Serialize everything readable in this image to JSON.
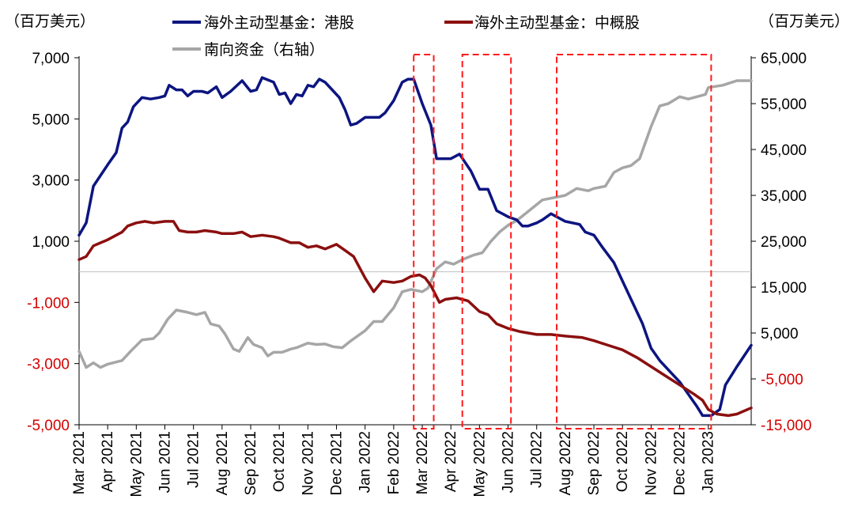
{
  "chart_data": {
    "type": "line",
    "left_unit": "（百万美元）",
    "right_unit": "（百万美元）",
    "left_axis": {
      "ylim": [
        -5000,
        7000
      ],
      "ticks": [
        7000,
        5000,
        3000,
        1000,
        -1000,
        -3000,
        -5000
      ],
      "tick_labels": [
        "7,000",
        "5,000",
        "3,000",
        "1,000",
        "-1,000",
        "-3,000",
        "-5,000"
      ]
    },
    "right_axis": {
      "ylim": [
        -15000,
        65000
      ],
      "ticks": [
        65000,
        55000,
        45000,
        35000,
        25000,
        15000,
        5000,
        -5000,
        -15000
      ],
      "tick_labels": [
        "65,000",
        "55,000",
        "45,000",
        "35,000",
        "25,000",
        "15,000",
        "5,000",
        "-5,000",
        "-15,000"
      ]
    },
    "x_axis": {
      "start": 0,
      "end": 23.5,
      "tick_labels": [
        "Mar 2021",
        "Apr 2021",
        "May 2021",
        "Jun 2021",
        "Jul 2021",
        "Aug 2021",
        "Sep 2021",
        "Oct 2021",
        "Nov 2021",
        "Dec 2021",
        "Jan 2022",
        "Feb 2022",
        "Mar 2022",
        "Apr 2022",
        "May 2022",
        "Jun 2022",
        "Jul 2022",
        "Aug 2022",
        "Sep 2022",
        "Oct 2022",
        "Nov 2022",
        "Dec 2022",
        "Jan 2023"
      ],
      "tick_positions": [
        0,
        1,
        2,
        3,
        4,
        5,
        6,
        7,
        8,
        9,
        10,
        11,
        12,
        13,
        14,
        15,
        16,
        17,
        18,
        19,
        20,
        21,
        22
      ]
    },
    "series": [
      {
        "name": "海外主动型基金：港股",
        "axis": "left",
        "color": "#0c1580",
        "points": [
          [
            0,
            1200
          ],
          [
            0.25,
            1600
          ],
          [
            0.5,
            2800
          ],
          [
            1,
            3500
          ],
          [
            1.3,
            3900
          ],
          [
            1.5,
            4700
          ],
          [
            1.7,
            4900
          ],
          [
            1.9,
            5400
          ],
          [
            2.2,
            5700
          ],
          [
            2.5,
            5650
          ],
          [
            2.8,
            5700
          ],
          [
            3,
            5750
          ],
          [
            3.15,
            6100
          ],
          [
            3.4,
            5950
          ],
          [
            3.6,
            5950
          ],
          [
            3.8,
            5750
          ],
          [
            4,
            5900
          ],
          [
            4.3,
            5900
          ],
          [
            4.5,
            5850
          ],
          [
            4.8,
            6050
          ],
          [
            5,
            5700
          ],
          [
            5.3,
            5900
          ],
          [
            5.7,
            6250
          ],
          [
            6,
            5900
          ],
          [
            6.2,
            5950
          ],
          [
            6.4,
            6350
          ],
          [
            6.8,
            6200
          ],
          [
            7,
            5800
          ],
          [
            7.2,
            5850
          ],
          [
            7.4,
            5500
          ],
          [
            7.6,
            5800
          ],
          [
            7.8,
            5750
          ],
          [
            8,
            6100
          ],
          [
            8.2,
            6050
          ],
          [
            8.4,
            6300
          ],
          [
            8.6,
            6200
          ],
          [
            8.9,
            5900
          ],
          [
            9.1,
            5700
          ],
          [
            9.3,
            5300
          ],
          [
            9.5,
            4800
          ],
          [
            9.7,
            4850
          ],
          [
            10,
            5050
          ],
          [
            10.3,
            5050
          ],
          [
            10.5,
            5050
          ],
          [
            10.7,
            5200
          ],
          [
            11,
            5600
          ],
          [
            11.3,
            6200
          ],
          [
            11.5,
            6300
          ],
          [
            11.7,
            6300
          ],
          [
            12,
            5500
          ],
          [
            12.3,
            4800
          ],
          [
            12.5,
            3700
          ],
          [
            12.8,
            3700
          ],
          [
            13,
            3700
          ],
          [
            13.3,
            3850
          ],
          [
            13.7,
            3300
          ],
          [
            14,
            2700
          ],
          [
            14.3,
            2700
          ],
          [
            14.6,
            2000
          ],
          [
            15,
            1800
          ],
          [
            15.3,
            1700
          ],
          [
            15.5,
            1500
          ],
          [
            15.7,
            1500
          ],
          [
            16,
            1600
          ],
          [
            16.2,
            1700
          ],
          [
            16.5,
            1900
          ],
          [
            17,
            1650
          ],
          [
            17.5,
            1550
          ],
          [
            17.7,
            1300
          ],
          [
            18,
            1200
          ],
          [
            18.3,
            800
          ],
          [
            18.7,
            300
          ],
          [
            19,
            -300
          ],
          [
            19.3,
            -900
          ],
          [
            19.7,
            -1700
          ],
          [
            20,
            -2500
          ],
          [
            20.3,
            -2900
          ],
          [
            20.6,
            -3200
          ],
          [
            21,
            -3600
          ],
          [
            21.3,
            -4000
          ],
          [
            21.6,
            -4400
          ],
          [
            21.8,
            -4700
          ],
          [
            22.1,
            -4700
          ],
          [
            22.4,
            -4500
          ],
          [
            22.6,
            -3700
          ],
          [
            23,
            -3100
          ],
          [
            23.5,
            -2400
          ]
        ]
      },
      {
        "name": "海外主动型基金：中概股",
        "axis": "left",
        "color": "#8b0f0f",
        "points": [
          [
            0,
            400
          ],
          [
            0.25,
            500
          ],
          [
            0.5,
            850
          ],
          [
            1,
            1050
          ],
          [
            1.3,
            1200
          ],
          [
            1.5,
            1300
          ],
          [
            1.7,
            1500
          ],
          [
            2,
            1600
          ],
          [
            2.3,
            1650
          ],
          [
            2.6,
            1600
          ],
          [
            3,
            1650
          ],
          [
            3.3,
            1650
          ],
          [
            3.5,
            1350
          ],
          [
            3.8,
            1300
          ],
          [
            4.1,
            1300
          ],
          [
            4.4,
            1350
          ],
          [
            4.8,
            1300
          ],
          [
            5,
            1250
          ],
          [
            5.4,
            1250
          ],
          [
            5.7,
            1300
          ],
          [
            6,
            1150
          ],
          [
            6.4,
            1200
          ],
          [
            6.8,
            1150
          ],
          [
            7,
            1100
          ],
          [
            7.4,
            950
          ],
          [
            7.7,
            950
          ],
          [
            8,
            800
          ],
          [
            8.3,
            850
          ],
          [
            8.6,
            750
          ],
          [
            9,
            900
          ],
          [
            9.3,
            700
          ],
          [
            9.6,
            500
          ],
          [
            10,
            -200
          ],
          [
            10.3,
            -650
          ],
          [
            10.6,
            -300
          ],
          [
            11,
            -350
          ],
          [
            11.3,
            -300
          ],
          [
            11.6,
            -150
          ],
          [
            11.9,
            -100
          ],
          [
            12.1,
            -200
          ],
          [
            12.3,
            -450
          ],
          [
            12.6,
            -1000
          ],
          [
            12.8,
            -900
          ],
          [
            13.2,
            -850
          ],
          [
            13.6,
            -950
          ],
          [
            14,
            -1300
          ],
          [
            14.3,
            -1400
          ],
          [
            14.6,
            -1700
          ],
          [
            15,
            -1850
          ],
          [
            15.4,
            -1950
          ],
          [
            16,
            -2050
          ],
          [
            16.5,
            -2050
          ],
          [
            17,
            -2100
          ],
          [
            17.6,
            -2150
          ],
          [
            18,
            -2250
          ],
          [
            18.5,
            -2400
          ],
          [
            19,
            -2550
          ],
          [
            19.5,
            -2800
          ],
          [
            20,
            -3100
          ],
          [
            20.5,
            -3400
          ],
          [
            21,
            -3700
          ],
          [
            21.5,
            -4000
          ],
          [
            21.8,
            -4200
          ],
          [
            22,
            -4500
          ],
          [
            22.3,
            -4650
          ],
          [
            22.7,
            -4700
          ],
          [
            23,
            -4650
          ],
          [
            23.5,
            -4450
          ]
        ]
      },
      {
        "name": "南向资金（右轴）",
        "axis": "right",
        "color": "#a6a6a6",
        "points": [
          [
            0,
            1000
          ],
          [
            0.25,
            -2500
          ],
          [
            0.5,
            -1500
          ],
          [
            0.75,
            -2500
          ],
          [
            1,
            -1800
          ],
          [
            1.5,
            -1000
          ],
          [
            1.8,
            1000
          ],
          [
            2.2,
            3500
          ],
          [
            2.6,
            3800
          ],
          [
            2.8,
            5000
          ],
          [
            3.1,
            8000
          ],
          [
            3.4,
            10000
          ],
          [
            3.8,
            9500
          ],
          [
            4.1,
            9000
          ],
          [
            4.4,
            9500
          ],
          [
            4.6,
            7000
          ],
          [
            4.9,
            6500
          ],
          [
            5.1,
            4800
          ],
          [
            5.4,
            1500
          ],
          [
            5.6,
            1000
          ],
          [
            5.9,
            4000
          ],
          [
            6.1,
            2500
          ],
          [
            6.4,
            1800
          ],
          [
            6.6,
            0
          ],
          [
            6.8,
            800
          ],
          [
            7.1,
            800
          ],
          [
            7.4,
            1500
          ],
          [
            7.6,
            1800
          ],
          [
            8,
            2800
          ],
          [
            8.3,
            2500
          ],
          [
            8.6,
            2600
          ],
          [
            8.9,
            2000
          ],
          [
            9.2,
            1800
          ],
          [
            9.5,
            3300
          ],
          [
            10,
            5500
          ],
          [
            10.3,
            7500
          ],
          [
            10.6,
            7500
          ],
          [
            11,
            10500
          ],
          [
            11.3,
            14000
          ],
          [
            11.6,
            14500
          ],
          [
            12,
            14000
          ],
          [
            12.2,
            14800
          ],
          [
            12.5,
            19000
          ],
          [
            12.8,
            20500
          ],
          [
            13.1,
            20000
          ],
          [
            13.4,
            21000
          ],
          [
            13.8,
            22000
          ],
          [
            14.1,
            22500
          ],
          [
            14.4,
            25000
          ],
          [
            14.7,
            27000
          ],
          [
            15,
            28500
          ],
          [
            15.3,
            29500
          ],
          [
            15.6,
            31000
          ],
          [
            15.9,
            32500
          ],
          [
            16.2,
            34000
          ],
          [
            16.6,
            34500
          ],
          [
            17,
            35000
          ],
          [
            17.4,
            36500
          ],
          [
            17.8,
            36000
          ],
          [
            18,
            36500
          ],
          [
            18.4,
            37000
          ],
          [
            18.7,
            40000
          ],
          [
            19,
            41000
          ],
          [
            19.3,
            41500
          ],
          [
            19.6,
            43000
          ],
          [
            20,
            50000
          ],
          [
            20.3,
            54500
          ],
          [
            20.6,
            55000
          ],
          [
            21,
            56500
          ],
          [
            21.3,
            56000
          ],
          [
            21.6,
            56500
          ],
          [
            21.9,
            57000
          ],
          [
            22,
            58500
          ],
          [
            22.5,
            59000
          ],
          [
            23,
            60000
          ],
          [
            23.5,
            60000
          ]
        ]
      }
    ],
    "highlight_boxes": [
      {
        "x_start": 11.7,
        "x_end": 12.4,
        "left_y_top": 7000,
        "left_y_bottom": -5000
      },
      {
        "x_start": 13.4,
        "x_end": 15.1,
        "left_y_top": 7000,
        "left_y_bottom": -5000
      },
      {
        "x_start": 16.7,
        "x_end": 22.1,
        "left_y_top": 7000,
        "left_y_bottom": -5000
      }
    ],
    "legend": [
      {
        "label": "海外主动型基金：港股",
        "color": "#0c1580"
      },
      {
        "label": "海外主动型基金：中概股",
        "color": "#8b0f0f"
      },
      {
        "label": "南向资金（右轴）",
        "color": "#a6a6a6"
      }
    ],
    "colors": {
      "negative_tick": "#d40000",
      "highlight_box": "#ff1a1a",
      "axis": "#000000",
      "zero_line": "#bfbfbf"
    }
  }
}
